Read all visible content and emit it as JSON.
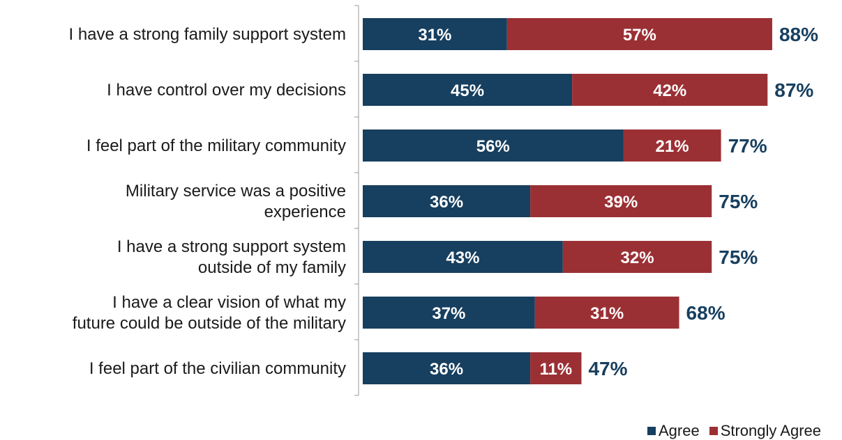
{
  "chart_data": {
    "type": "bar",
    "orientation": "horizontal",
    "stacked": true,
    "categories": [
      [
        "I have a strong family support system"
      ],
      [
        "I have control over my decisions"
      ],
      [
        "I feel part of the military community"
      ],
      [
        "Military service was a positive",
        "experience"
      ],
      [
        "I have a strong support system",
        "outside of my family"
      ],
      [
        "I have a clear vision of what my",
        "future could be outside of the military"
      ],
      [
        "I feel part of the civilian community"
      ]
    ],
    "series": [
      {
        "name": "Agree",
        "color": "#173f5f",
        "values": [
          31,
          45,
          56,
          36,
          43,
          37,
          36
        ]
      },
      {
        "name": "Strongly Agree",
        "color": "#9b3034",
        "values": [
          57,
          42,
          21,
          39,
          32,
          31,
          11
        ]
      }
    ],
    "totals": [
      88,
      87,
      77,
      75,
      75,
      68,
      47
    ],
    "value_suffix": "%",
    "xlim": [
      0,
      100
    ],
    "grid": false,
    "legend_position": "bottom-right"
  }
}
